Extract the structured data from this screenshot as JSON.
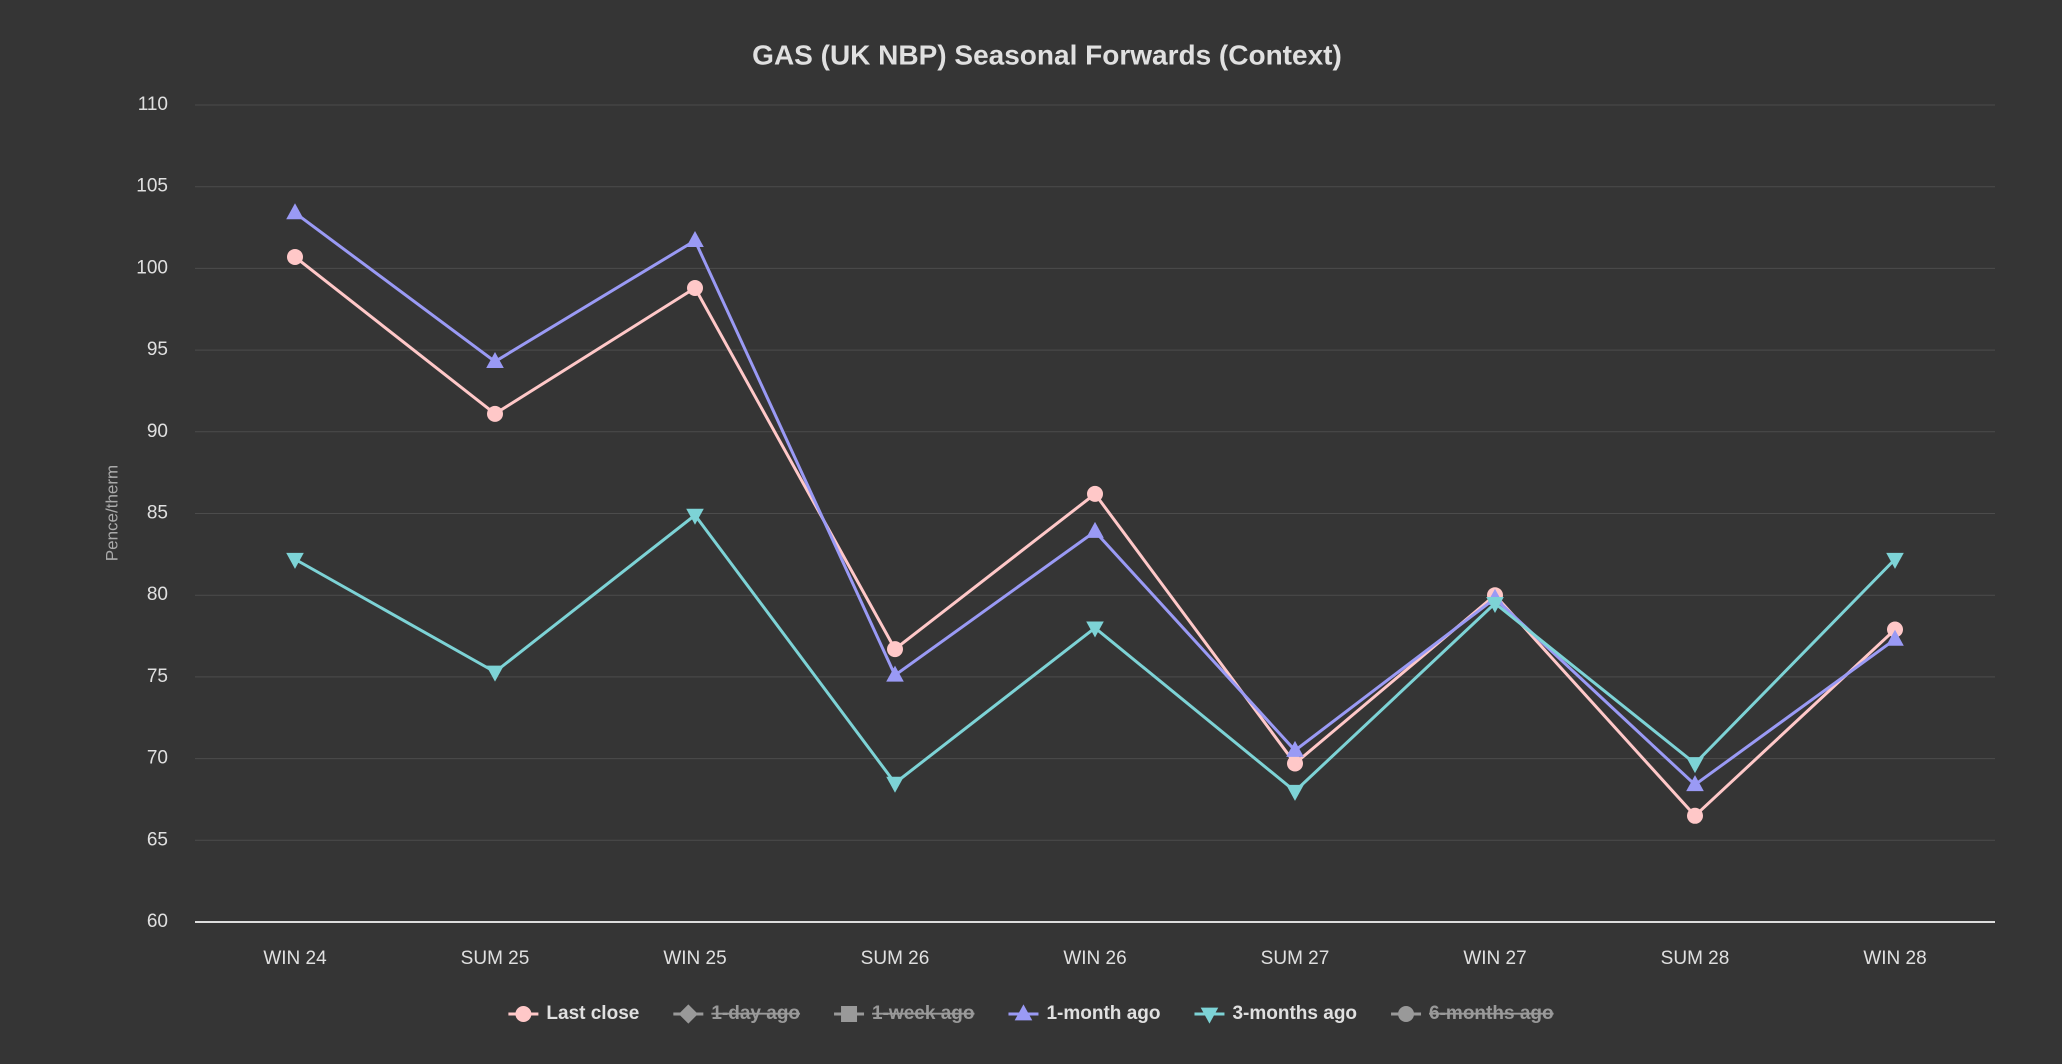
{
  "chart_data": {
    "type": "line",
    "title": "GAS (UK NBP) Seasonal Forwards (Context)",
    "y_label": "Pence/therm",
    "categories": [
      "WIN 24",
      "SUM 25",
      "WIN 25",
      "SUM 26",
      "WIN 26",
      "SUM 27",
      "WIN 27",
      "SUM 28",
      "WIN 28"
    ],
    "ylim": [
      60,
      110
    ],
    "yticks": [
      60,
      65,
      70,
      75,
      80,
      85,
      90,
      95,
      100,
      105,
      110
    ],
    "grid": true,
    "legend": "bottom",
    "series": [
      {
        "name": "Last close",
        "color": "#ffc8c8",
        "marker": "circle",
        "visible": true,
        "values": [
          100.7,
          91.1,
          98.8,
          76.7,
          86.2,
          69.7,
          80.0,
          66.5,
          77.9
        ]
      },
      {
        "name": "1-day ago",
        "color": "#999999",
        "marker": "diamond",
        "visible": false
      },
      {
        "name": "1-week ago",
        "color": "#999999",
        "marker": "square",
        "visible": false
      },
      {
        "name": "1-month ago",
        "color": "#9a9af5",
        "marker": "triangle",
        "visible": true,
        "values": [
          103.4,
          94.3,
          101.7,
          75.1,
          83.9,
          70.5,
          79.8,
          68.4,
          77.3
        ]
      },
      {
        "name": "3-months ago",
        "color": "#7dd3d6",
        "marker": "triangle-down",
        "visible": true,
        "values": [
          82.2,
          75.3,
          84.9,
          68.5,
          78.0,
          68.0,
          79.5,
          69.7,
          82.2
        ]
      },
      {
        "name": "6-months ago",
        "color": "#999999",
        "marker": "circle",
        "visible": false
      }
    ]
  }
}
